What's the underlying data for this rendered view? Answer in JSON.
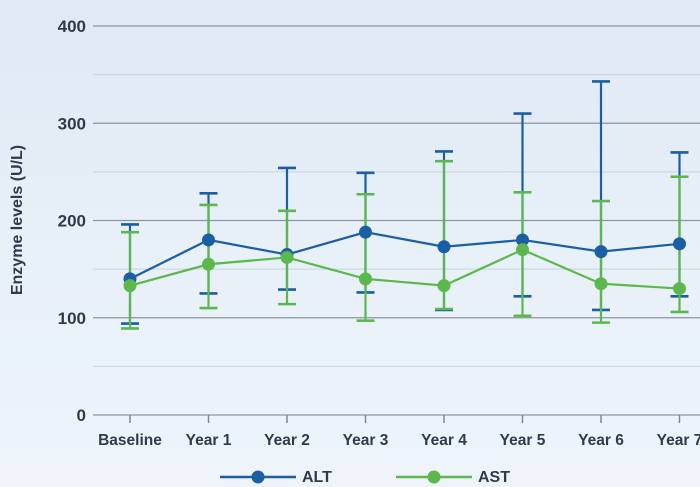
{
  "chart_data": {
    "type": "line",
    "title": "",
    "xlabel": "",
    "ylabel": "Enzyme levels (U/L)",
    "categories": [
      "Baseline",
      "Year 1",
      "Year 2",
      "Year 3",
      "Year 4",
      "Year 5",
      "Year 6",
      "Year 7"
    ],
    "ylim": [
      0,
      400
    ],
    "yticks": [
      0,
      100,
      200,
      300,
      400
    ],
    "grid": true,
    "legend_position": "bottom-center",
    "error_bars": true,
    "series": [
      {
        "name": "ALT",
        "color": "#1a5fa3",
        "values": [
          140,
          180,
          165,
          188,
          173,
          180,
          168,
          176
        ],
        "upper": [
          196,
          228,
          254,
          249,
          271,
          310,
          343,
          270
        ],
        "lower": [
          94,
          125,
          129,
          126,
          108,
          122,
          108,
          122
        ]
      },
      {
        "name": "AST",
        "color": "#5cb84d",
        "values": [
          133,
          155,
          162,
          140,
          133,
          170,
          135,
          130
        ],
        "upper": [
          188,
          216,
          210,
          227,
          261,
          229,
          220,
          245
        ],
        "lower": [
          89,
          110,
          114,
          97,
          109,
          102,
          95,
          106
        ]
      }
    ]
  }
}
